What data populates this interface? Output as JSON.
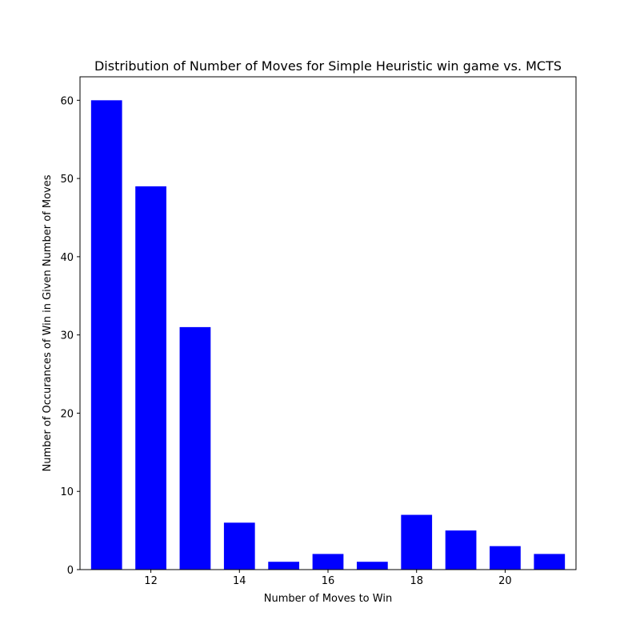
{
  "chart_data": {
    "type": "bar",
    "title": "Distribution of Number of Moves for Simple Heuristic win game vs. MCTS",
    "xlabel": "Number of Moves to Win",
    "ylabel": "Number of Occurances of Win in Given Number of Moves",
    "x": [
      11,
      12,
      13,
      14,
      15,
      16,
      17,
      18,
      19,
      20,
      21
    ],
    "values": [
      60,
      49,
      31,
      6,
      1,
      2,
      1,
      7,
      5,
      3,
      2
    ],
    "bar_width": 0.7,
    "bar_color": "#0000ff",
    "xlim": [
      10.4,
      21.6
    ],
    "ylim": [
      0,
      63
    ],
    "xticks": [
      12,
      14,
      16,
      18,
      20
    ],
    "yticks": [
      0,
      10,
      20,
      30,
      40,
      50,
      60
    ],
    "grid": false,
    "legend": "none"
  }
}
